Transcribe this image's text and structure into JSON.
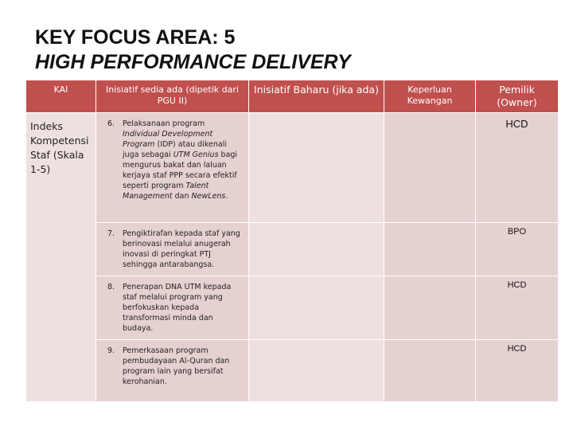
{
  "title": {
    "line1": "KEY FOCUS AREA: 5",
    "line2": "HIGH PERFORMANCE DELIVERY"
  },
  "table": {
    "headers": {
      "kai": "KAI",
      "inisiatif_sedia_ada": "Inisiatif sedia ada (dipetik dari PGU II)",
      "inisiatif_baharu": "Inisiatif Baharu (jika ada)",
      "keperluan_kewangan": "Keperluan Kewangan",
      "pemilik": "Pemilik (Owner)"
    },
    "kai_value": "Indeks Kompetensi Staf (Skala 1-5)",
    "rows": [
      {
        "number": "6.",
        "text_parts": [
          {
            "text": "Pelaksanaan program ",
            "italic": false
          },
          {
            "text": "Individual Development Program",
            "italic": true
          },
          {
            "text": " (IDP) atau dikenali juga sebagai ",
            "italic": false
          },
          {
            "text": "UTM Genius",
            "italic": true
          },
          {
            "text": " bagi mengurus bakat dan laluan kerjaya staf PPP secara efektif seperti program ",
            "italic": false
          },
          {
            "text": "Talent Management",
            "italic": true
          },
          {
            "text": " dan ",
            "italic": false
          },
          {
            "text": "NewLens",
            "italic": true
          },
          {
            "text": ".",
            "italic": false
          }
        ],
        "owner": "HCD"
      },
      {
        "number": "7.",
        "text_parts": [
          {
            "text": "Pengiktirafan kepada staf yang berinovasi melalui anugerah inovasi di peringkat PTJ sehingga antarabangsa.",
            "italic": false
          }
        ],
        "owner": "BPO"
      },
      {
        "number": "8.",
        "text_parts": [
          {
            "text": "Penerapan DNA UTM kepada staf melalui program yang berfokuskan kepada transformasi minda dan budaya.",
            "italic": false
          }
        ],
        "owner": "HCD"
      },
      {
        "number": "9.",
        "text_parts": [
          {
            "text": "Pemerkasaan program pembudayaan Al-Quran dan program lain yang bersifat kerohanian.",
            "italic": false
          }
        ],
        "owner": "HCD"
      }
    ]
  },
  "colors": {
    "header_bg": "#c0504d",
    "cell_bg": "#e6d1d1",
    "cell_bg_light": "#efe0e0"
  }
}
